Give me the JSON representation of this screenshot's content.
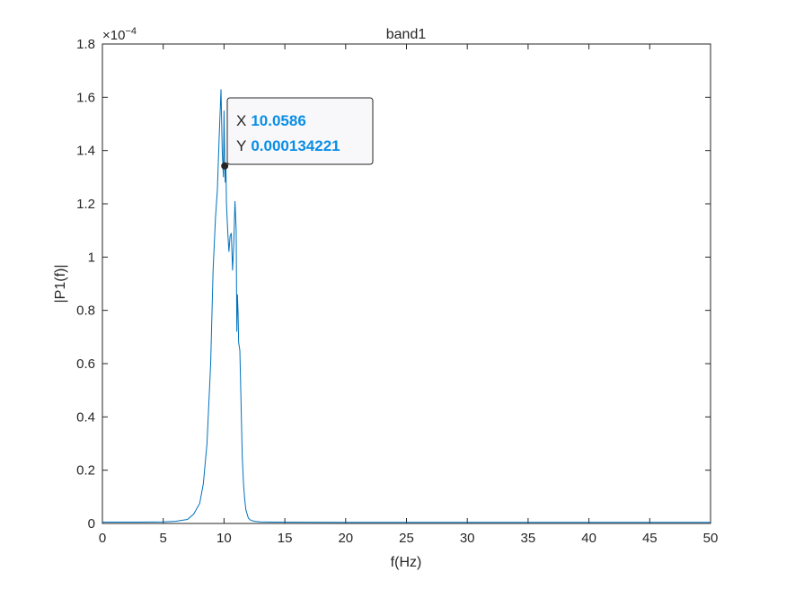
{
  "chart_data": {
    "type": "line",
    "title": "band1",
    "xlabel": "f(Hz)",
    "ylabel": "|P1(f)|",
    "xlim": [
      0,
      50
    ],
    "ylim": [
      0,
      0.00018
    ],
    "x_ticks": [
      0,
      5,
      10,
      15,
      20,
      25,
      30,
      35,
      40,
      45,
      50
    ],
    "x_tick_labels": [
      "0",
      "5",
      "10",
      "15",
      "20",
      "25",
      "30",
      "35",
      "40",
      "45",
      "50"
    ],
    "y_ticks": [
      0,
      2e-05,
      4e-05,
      6e-05,
      8e-05,
      0.0001,
      0.00012,
      0.00014,
      0.00016,
      0.00018
    ],
    "y_tick_labels": [
      "0",
      "0.2",
      "0.4",
      "0.6",
      "0.8",
      "1",
      "1.2",
      "1.4",
      "1.6",
      "1.8"
    ],
    "y_exponent_base": "×10",
    "y_exponent_power": "−4",
    "grid": false,
    "line_color": "#0072bd",
    "series": [
      {
        "x": [
          0,
          3,
          5,
          6,
          7,
          7.5,
          8,
          8.3,
          8.6,
          8.9,
          9.1,
          9.3,
          9.45,
          9.6,
          9.75,
          9.85,
          9.95,
          10.0,
          10.06,
          10.1,
          10.15,
          10.2,
          10.3,
          10.4,
          10.5,
          10.6,
          10.7,
          10.8,
          10.9,
          11.0,
          11.05,
          11.1,
          11.15,
          11.2,
          11.3,
          11.4,
          11.5,
          11.6,
          11.7,
          11.8,
          12.0,
          12.2,
          12.5,
          13,
          14,
          20,
          30,
          40,
          50
        ],
        "y": [
          5e-07,
          5e-07,
          6e-07,
          8e-07,
          1.5e-06,
          3.5e-06,
          7.5e-06,
          1.5e-05,
          3e-05,
          6e-05,
          9.5e-05,
          0.000115,
          0.000125,
          0.000145,
          0.000163,
          0.00014,
          0.00013,
          0.000155,
          0.000134221,
          0.000128,
          0.000135,
          0.00012,
          0.00011,
          0.000102,
          0.000108,
          0.000109,
          9.5e-05,
          0.000105,
          0.000121,
          0.00011,
          7.2e-05,
          8.6e-05,
          8e-05,
          6.8e-05,
          6.5e-05,
          4.5e-05,
          2.5e-05,
          1.5e-05,
          9e-06,
          5e-06,
          2e-06,
          1.2e-06,
          8e-07,
          6e-07,
          5e-07,
          4e-07,
          4e-07,
          4e-07,
          4e-07
        ]
      }
    ],
    "datatip": {
      "x": 10.0586,
      "y": 0.000134221,
      "x_key": "X",
      "x_value": "10.0586",
      "y_key": "Y",
      "y_value": "0.000134221"
    }
  }
}
